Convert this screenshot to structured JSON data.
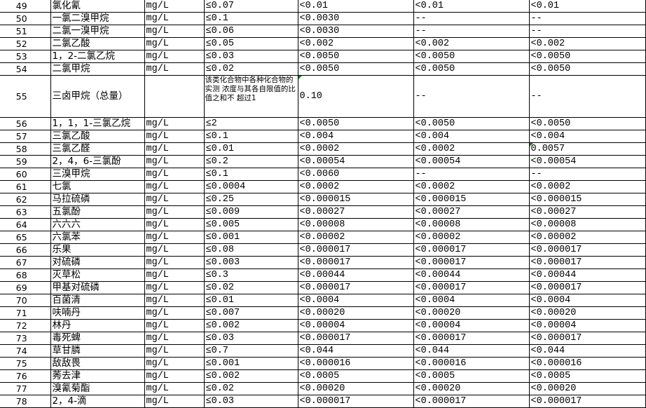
{
  "unit": "mg/L",
  "rows": [
    {
      "no": "49",
      "name": "氯化氰",
      "unit": "mg/L",
      "limit": "≤0.07",
      "r1": "<0.01",
      "r2": "<0.01",
      "r3": "<0.01"
    },
    {
      "no": "50",
      "name": "一氯二溴甲烷",
      "unit": "mg/L",
      "limit": "≤0.1",
      "r1": "<0.0030",
      "r2": "--",
      "r3": "--"
    },
    {
      "no": "51",
      "name": "二氯一溴甲烷",
      "unit": "mg/L",
      "limit": "≤0.06",
      "r1": "<0.0030",
      "r2": "--",
      "r3": "--"
    },
    {
      "no": "52",
      "name": "二氯乙酸",
      "unit": "mg/L",
      "limit": "≤0.05",
      "r1": "<0.002",
      "r2": "<0.002",
      "r3": "<0.002"
    },
    {
      "no": "53",
      "name": "1，2-二氯乙烷",
      "unit": "mg/L",
      "limit": "≤0.03",
      "r1": "<0.0050",
      "r2": "<0.0050",
      "r3": "<0.0050"
    },
    {
      "no": "54",
      "name": "二氯甲烷",
      "unit": "mg/L",
      "limit": "≤0.02",
      "r1": "<0.0050",
      "r2": "<0.0050",
      "r3": "<0.0050"
    },
    {
      "no": "55",
      "name": "三卤甲烷（总量）",
      "unit": "",
      "limit": "该类化合物中各种化合物的实测 浓度与其各自限值的比值之和不 超过1",
      "r1": "0.10",
      "r2": "--",
      "r3": "--",
      "tall": true,
      "flag_r1": true
    },
    {
      "no": "56",
      "name": "1，1，1-三氯乙烷",
      "unit": "mg/L",
      "limit": "≤2",
      "r1": "<0.0050",
      "r2": "<0.0050",
      "r3": "<0.0050"
    },
    {
      "no": "57",
      "name": "三氯乙酸",
      "unit": "mg/L",
      "limit": "≤0.1",
      "r1": "<0.004",
      "r2": "<0.004",
      "r3": "<0.004"
    },
    {
      "no": "58",
      "name": "三氯乙醛",
      "unit": "mg/L",
      "limit": "≤0.01",
      "r1": "<0.0002",
      "r2": "<0.0002",
      "r3": "0.0057",
      "flag_r3": true
    },
    {
      "no": "59",
      "name": "2，4，6-三氯酚",
      "unit": "mg/L",
      "limit": "≤0.2",
      "r1": "<0.00054",
      "r2": "<0.00054",
      "r3": "<0.00054"
    },
    {
      "no": "60",
      "name": "三溴甲烷",
      "unit": "mg/L",
      "limit": "≤0.1",
      "r1": "<0.0060",
      "r2": "--",
      "r3": "--"
    },
    {
      "no": "61",
      "name": "七氯",
      "unit": "mg/L",
      "limit": "≤0.0004",
      "r1": "<0.0002",
      "r2": "<0.0002",
      "r3": "<0.0002"
    },
    {
      "no": "62",
      "name": "马拉硫磷",
      "unit": "mg/L",
      "limit": "≤0.25",
      "r1": "<0.000015",
      "r2": "<0.000015",
      "r3": "<0.000015"
    },
    {
      "no": "63",
      "name": "五氯酚",
      "unit": "mg/L",
      "limit": "≤0.009",
      "r1": "<0.00027",
      "r2": "<0.00027",
      "r3": "<0.00027"
    },
    {
      "no": "64",
      "name": "六六六",
      "unit": "mg/L",
      "limit": "≤0.005",
      "r1": "<0.00008",
      "r2": "<0.00008",
      "r3": "<0.00008"
    },
    {
      "no": "65",
      "name": "六氯苯",
      "unit": "mg/L",
      "limit": "≤0.001",
      "r1": "<0.00002",
      "r2": "<0.00002",
      "r3": "<0.00002"
    },
    {
      "no": "66",
      "name": "乐果",
      "unit": "mg/L",
      "limit": "≤0.08",
      "r1": "<0.000017",
      "r2": "<0.000017",
      "r3": "<0.000017"
    },
    {
      "no": "67",
      "name": "对硫磷",
      "unit": "mg/L",
      "limit": "≤0.003",
      "r1": "<0.000017",
      "r2": "<0.000017",
      "r3": "<0.000017"
    },
    {
      "no": "68",
      "name": "灭草松",
      "unit": "mg/L",
      "limit": "≤0.3",
      "r1": "<0.00044",
      "r2": "<0.00044",
      "r3": "<0.00044"
    },
    {
      "no": "69",
      "name": "甲基对硫磷",
      "unit": "mg/L",
      "limit": "≤0.02",
      "r1": "<0.000017",
      "r2": "<0.000017",
      "r3": "<0.000017"
    },
    {
      "no": "70",
      "name": "百菌清",
      "unit": "mg/L",
      "limit": "≤0.01",
      "r1": "<0.0004",
      "r2": "<0.0004",
      "r3": "<0.0004"
    },
    {
      "no": "71",
      "name": "呋喃丹",
      "unit": "mg/L",
      "limit": "≤0.007",
      "r1": "<0.00020",
      "r2": "<0.00020",
      "r3": "<0.00020"
    },
    {
      "no": "72",
      "name": "林丹",
      "unit": "mg/L",
      "limit": "≤0.002",
      "r1": "<0.00004",
      "r2": "<0.00004",
      "r3": "<0.00004"
    },
    {
      "no": "73",
      "name": "毒死蜱",
      "unit": "mg/L",
      "limit": "≤0.03",
      "r1": "<0.000017",
      "r2": "<0.000017",
      "r3": "<0.000017"
    },
    {
      "no": "74",
      "name": "草甘膦",
      "unit": "mg/L",
      "limit": "≤0.7",
      "r1": "<0.044",
      "r2": "<0.044",
      "r3": "<0.044"
    },
    {
      "no": "75",
      "name": "敌敌畏",
      "unit": "mg/L",
      "limit": "≤0.001",
      "r1": "<0.000016",
      "r2": "<0.000016",
      "r3": "<0.000016"
    },
    {
      "no": "76",
      "name": "莠去津",
      "unit": "mg/L",
      "limit": "≤0.002",
      "r1": "<0.0005",
      "r2": "<0.0005",
      "r3": "<0.0005"
    },
    {
      "no": "77",
      "name": "溴氰菊酯",
      "unit": "mg/L",
      "limit": "≤0.02",
      "r1": "<0.00020",
      "r2": "<0.00020",
      "r3": "<0.00020"
    },
    {
      "no": "78",
      "name": "2，4-滴",
      "unit": "mg/L",
      "limit": "≤0.03",
      "r1": "<0.000017",
      "r2": "<0.000017",
      "r3": "<0.000017"
    }
  ],
  "colors": {
    "grid": "#000000",
    "comment_flag": "#1a7f1a"
  }
}
